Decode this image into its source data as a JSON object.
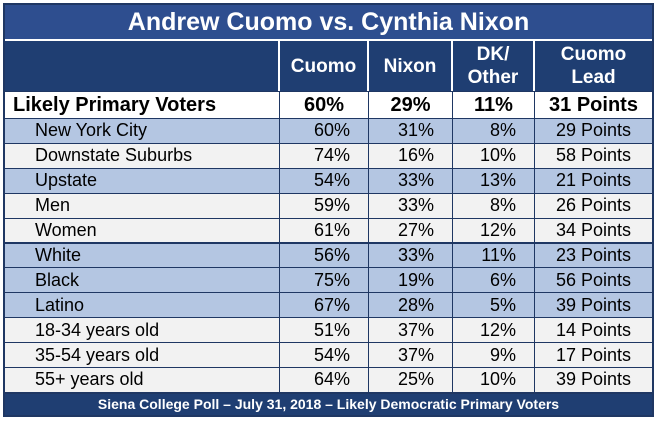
{
  "title": "Andrew Cuomo vs. Cynthia Nixon",
  "headers": [
    "",
    "Cuomo",
    "Nixon",
    "DK/\nOther",
    "Cuomo\nLead"
  ],
  "footer": "Siena College Poll – July 31, 2018 – Likely Democratic Primary Voters",
  "colors": {
    "header_bg": "#1f3e72",
    "title_bg": "#2e4e8f",
    "row_blue": "#b4c6e2",
    "row_white": "#f2f2f2"
  },
  "chart_data": {
    "type": "table",
    "title": "Andrew Cuomo vs. Cynthia Nixon",
    "columns": [
      "Cuomo",
      "Nixon",
      "DK/ Other",
      "Cuomo Lead"
    ],
    "rows": [
      {
        "label": "Likely Primary Voters",
        "values": [
          "60%",
          "29%",
          "11%",
          "31 Points"
        ],
        "style": "total"
      },
      {
        "label": "New York City",
        "values": [
          "60%",
          "31%",
          "8%",
          "29 Points"
        ],
        "style": "blue"
      },
      {
        "label": "Downstate Suburbs",
        "values": [
          "74%",
          "16%",
          "10%",
          "58 Points"
        ],
        "style": "white"
      },
      {
        "label": "Upstate",
        "values": [
          "54%",
          "33%",
          "13%",
          "21 Points"
        ],
        "style": "blue"
      },
      {
        "label": "Men",
        "values": [
          "59%",
          "33%",
          "8%",
          "26 Points"
        ],
        "style": "white"
      },
      {
        "label": "Women",
        "values": [
          "61%",
          "27%",
          "12%",
          "34 Points"
        ],
        "style": "white"
      },
      {
        "label": "White",
        "values": [
          "56%",
          "33%",
          "11%",
          "23 Points"
        ],
        "style": "blue"
      },
      {
        "label": "Black",
        "values": [
          "75%",
          "19%",
          "6%",
          "56 Points"
        ],
        "style": "blue"
      },
      {
        "label": "Latino",
        "values": [
          "67%",
          "28%",
          "5%",
          "39 Points"
        ],
        "style": "blue"
      },
      {
        "label": "18-34 years old",
        "values": [
          "51%",
          "37%",
          "12%",
          "14 Points"
        ],
        "style": "white"
      },
      {
        "label": "35-54 years old",
        "values": [
          "54%",
          "37%",
          "9%",
          "17 Points"
        ],
        "style": "white"
      },
      {
        "label": "55+ years old",
        "values": [
          "64%",
          "25%",
          "10%",
          "39 Points"
        ],
        "style": "white"
      }
    ]
  }
}
